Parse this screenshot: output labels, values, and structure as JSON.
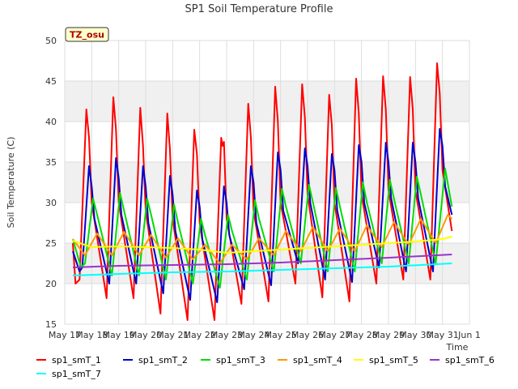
{
  "chart_data": {
    "type": "line",
    "title": "SP1 Soil Temperature Profile",
    "xlabel": "Time",
    "ylabel": "Soil Temperature (C)",
    "ylim": [
      15,
      50
    ],
    "yticks": [
      15,
      20,
      25,
      30,
      35,
      40,
      45,
      50
    ],
    "xlim": [
      0,
      15
    ],
    "xticks": [
      {
        "pos": 0,
        "label": "May 17"
      },
      {
        "pos": 1,
        "label": "May 18"
      },
      {
        "pos": 2,
        "label": "May 19"
      },
      {
        "pos": 3,
        "label": "May 20"
      },
      {
        "pos": 4,
        "label": "May 21"
      },
      {
        "pos": 5,
        "label": "May 22"
      },
      {
        "pos": 6,
        "label": "May 23"
      },
      {
        "pos": 7,
        "label": "May 24"
      },
      {
        "pos": 8,
        "label": "May 25"
      },
      {
        "pos": 9,
        "label": "May 26"
      },
      {
        "pos": 10,
        "label": "May 27"
      },
      {
        "pos": 11,
        "label": "May 28"
      },
      {
        "pos": 12,
        "label": "May 29"
      },
      {
        "pos": 13,
        "label": "May 30"
      },
      {
        "pos": 14,
        "label": "May 31"
      },
      {
        "pos": 15,
        "label": "Jun 1"
      }
    ],
    "grid": true,
    "site_label": "TZ_osu",
    "series": [
      {
        "name": "sp1_smT_1",
        "color": "#ff0000",
        "x": [
          0.3,
          0.4,
          0.55,
          0.8,
          0.9,
          1.0,
          1.55,
          1.8,
          1.9,
          2.0,
          2.55,
          2.8,
          2.9,
          3.0,
          3.55,
          3.8,
          3.9,
          4.0,
          4.55,
          4.8,
          4.9,
          5.0,
          5.55,
          5.8,
          5.85,
          5.9,
          6.0,
          6.55,
          6.8,
          6.9,
          7.0,
          7.55,
          7.8,
          7.9,
          8.0,
          8.55,
          8.8,
          8.9,
          9.0,
          9.55,
          9.8,
          9.9,
          10.0,
          10.55,
          10.8,
          10.9,
          11.0,
          11.55,
          11.8,
          11.9,
          12.0,
          12.55,
          12.8,
          12.9,
          13.0,
          13.55,
          13.8,
          13.9,
          14.0,
          14.35
        ],
        "y": [
          25.0,
          20.0,
          20.5,
          41.5,
          38.0,
          30.0,
          18.2,
          43.0,
          39.0,
          30.0,
          18.2,
          41.7,
          37.0,
          29.0,
          16.3,
          41.0,
          36.5,
          28.0,
          15.5,
          39.0,
          36.0,
          27.5,
          15.5,
          38.0,
          37.0,
          37.5,
          28.0,
          17.5,
          42.2,
          38.0,
          29.0,
          17.8,
          44.3,
          40.0,
          30.0,
          20.0,
          44.6,
          40.5,
          31.0,
          18.3,
          43.3,
          39.5,
          30.0,
          17.8,
          45.3,
          41.0,
          31.0,
          20.0,
          45.6,
          41.5,
          31.5,
          20.5,
          45.5,
          41.5,
          31.5,
          20.5,
          47.2,
          43.5,
          34.0,
          26.5
        ]
      },
      {
        "name": "sp1_smT_2",
        "color": "#0000cc",
        "x": [
          0.3,
          0.55,
          0.65,
          0.9,
          1.0,
          1.1,
          1.65,
          1.9,
          2.0,
          2.1,
          2.65,
          2.9,
          3.0,
          3.1,
          3.65,
          3.9,
          4.0,
          4.1,
          4.65,
          4.9,
          5.0,
          5.1,
          5.65,
          5.9,
          6.0,
          6.1,
          6.65,
          6.9,
          7.0,
          7.1,
          7.65,
          7.9,
          8.0,
          8.1,
          8.65,
          8.9,
          9.0,
          9.1,
          9.65,
          9.9,
          10.0,
          10.1,
          10.65,
          10.9,
          11.0,
          11.1,
          11.65,
          11.9,
          12.0,
          12.1,
          12.65,
          12.9,
          13.0,
          13.1,
          13.65,
          13.9,
          14.0,
          14.1,
          14.35
        ],
        "y": [
          24.0,
          21.5,
          22.0,
          34.5,
          32.0,
          28.0,
          20.0,
          35.5,
          33.0,
          28.5,
          20.0,
          34.5,
          32.0,
          27.5,
          18.8,
          33.3,
          31.0,
          26.5,
          18.0,
          31.5,
          29.5,
          25.5,
          17.7,
          32.0,
          30.0,
          26.0,
          19.3,
          34.5,
          32.5,
          27.5,
          19.8,
          36.2,
          34.0,
          29.0,
          22.5,
          36.7,
          34.5,
          30.0,
          20.5,
          36.0,
          34.0,
          29.0,
          20.2,
          37.1,
          35.0,
          30.0,
          22.0,
          37.4,
          35.0,
          30.5,
          21.5,
          37.4,
          35.0,
          30.5,
          21.5,
          39.1,
          37.0,
          32.0,
          28.5
        ]
      },
      {
        "name": "sp1_smT_3",
        "color": "#00dd00",
        "x": [
          0.3,
          0.6,
          0.75,
          1.05,
          1.2,
          1.75,
          2.05,
          2.2,
          2.75,
          3.05,
          3.2,
          3.75,
          4.05,
          4.2,
          4.75,
          5.05,
          5.2,
          5.75,
          6.05,
          6.2,
          6.75,
          7.05,
          7.2,
          7.75,
          8.05,
          8.2,
          8.75,
          9.05,
          9.2,
          9.75,
          10.05,
          10.2,
          10.75,
          11.05,
          11.2,
          11.75,
          12.05,
          12.2,
          12.75,
          13.05,
          13.2,
          13.75,
          14.1,
          14.35
        ],
        "y": [
          25.5,
          22.0,
          22.5,
          30.5,
          28.5,
          21.0,
          31.2,
          29.0,
          21.0,
          30.5,
          28.5,
          20.5,
          29.8,
          27.5,
          20.0,
          28.0,
          26.0,
          19.5,
          28.5,
          26.5,
          20.5,
          30.3,
          28.0,
          21.5,
          31.7,
          29.5,
          22.5,
          32.2,
          30.0,
          21.5,
          31.8,
          29.5,
          21.5,
          32.5,
          30.0,
          22.5,
          32.8,
          30.5,
          22.5,
          33.2,
          31.0,
          22.5,
          34.2,
          29.5
        ]
      },
      {
        "name": "sp1_smT_4",
        "color": "#ff9900",
        "x": [
          0.3,
          0.75,
          1.2,
          1.75,
          2.2,
          2.75,
          3.2,
          3.75,
          4.2,
          4.75,
          5.2,
          5.75,
          6.2,
          6.75,
          7.2,
          7.75,
          8.2,
          8.75,
          9.2,
          9.75,
          10.2,
          10.75,
          11.2,
          11.75,
          12.2,
          12.75,
          13.2,
          13.75,
          14.2,
          14.35
        ],
        "y": [
          25.5,
          23.5,
          26.2,
          23.5,
          26.4,
          23.5,
          26.0,
          23.2,
          25.6,
          23.0,
          24.8,
          22.5,
          24.8,
          23.0,
          25.6,
          23.5,
          26.5,
          24.0,
          27.0,
          24.0,
          26.8,
          24.0,
          27.2,
          24.5,
          27.6,
          24.8,
          28.0,
          25.0,
          28.5,
          28.0
        ]
      },
      {
        "name": "sp1_smT_5",
        "color": "#ffff00",
        "x": [
          0.3,
          1.0,
          2.0,
          3.0,
          4.0,
          5.0,
          6.0,
          7.0,
          8.0,
          9.0,
          10.0,
          11.0,
          12.0,
          13.0,
          14.0,
          14.35
        ],
        "y": [
          25.3,
          24.5,
          24.6,
          24.5,
          24.4,
          24.2,
          23.8,
          24.0,
          24.2,
          24.4,
          24.6,
          24.8,
          25.0,
          25.2,
          25.5,
          25.8
        ]
      },
      {
        "name": "sp1_smT_6",
        "color": "#9933cc",
        "x": [
          0.3,
          2.0,
          4.0,
          6.0,
          8.0,
          10.0,
          12.0,
          14.35
        ],
        "y": [
          22.0,
          22.2,
          22.3,
          22.4,
          22.6,
          22.9,
          23.2,
          23.6
        ]
      },
      {
        "name": "sp1_smT_7",
        "color": "#00ffff",
        "x": [
          0.3,
          2.0,
          4.0,
          6.0,
          8.0,
          10.0,
          12.0,
          14.35
        ],
        "y": [
          21.0,
          21.2,
          21.4,
          21.5,
          21.7,
          21.9,
          22.1,
          22.5
        ]
      }
    ]
  }
}
